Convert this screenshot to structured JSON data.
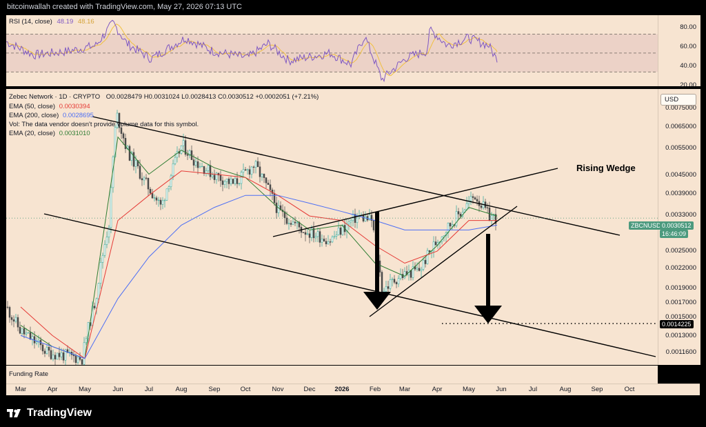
{
  "header": {
    "text": "bitcoinwallah created with TradingView.com, May 27, 2026 07:13 UTC"
  },
  "rsi": {
    "legend_label": "RSI (14, close)",
    "value": "48.19",
    "value_ma": "48.16",
    "ticks": [
      "80.00",
      "60.00",
      "40.00",
      "20.00"
    ],
    "colors": {
      "rsi": "#7e57c2",
      "ma": "#f0c040"
    }
  },
  "price": {
    "legend": {
      "symbol_line": "Zebec Network · 1D · CRYPTO",
      "ohlc": "O0.0028479 H0.0031024 L0.0028413 C0.0030512 +0.0002051 (+7.21%)",
      "ema50": "EMA (50, close)",
      "ema50_value": "0.0030394",
      "ema200": "EMA (200, close)",
      "ema200_value": "0.0028695",
      "vol_note": "Vol: The data vendor doesn't provide volume data for this symbol.",
      "ema20": "EMA (20, close)",
      "ema20_value": "0.0031010"
    },
    "currency": "USD",
    "ticks": [
      "0.0075000",
      "0.0065000",
      "0.0055000",
      "0.0045000",
      "0.0039000",
      "0.0033000",
      "0.0025000",
      "0.0022000",
      "0.0019000",
      "0.0017000",
      "0.0015000",
      "0.0013000",
      "0.0011600"
    ],
    "symbol_badge": "ZBCNUSD",
    "last_price": "0.0030512",
    "countdown": "16:46:09",
    "target_price": "0.0014225",
    "annotation": "Rising Wedge",
    "colors": {
      "up": "#26a69a",
      "down": "#4a4a4a",
      "ema20": "#2e7d32",
      "ema50": "#e53935",
      "ema200": "#4c6ef5",
      "badge": "#4c9a7e"
    }
  },
  "funding": {
    "label": "Funding Rate"
  },
  "time_axis": {
    "labels": [
      "Mar",
      "Apr",
      "May",
      "Jun",
      "Jul",
      "Aug",
      "Sep",
      "Oct",
      "Nov",
      "Dec",
      "2026",
      "Feb",
      "Mar",
      "Apr",
      "May",
      "Jun",
      "Jul",
      "Aug",
      "Sep",
      "Oct"
    ]
  },
  "footer": {
    "brand": "TradingView"
  },
  "chart_data": {
    "type": "line",
    "title": "Zebec Network · 1D · CRYPTO",
    "currency": "USD",
    "yscale": "log",
    "ylim": [
      0.00105,
      0.0078
    ],
    "x": [
      "Mar",
      "Apr",
      "May",
      "Jun",
      "Jul",
      "Aug",
      "Sep",
      "Oct",
      "Nov",
      "Dec",
      "2026",
      "Feb",
      "Mar",
      "Apr",
      "May",
      "Jun"
    ],
    "series": [
      {
        "name": "EMA (20, close)",
        "values": [
          0.0014,
          0.0012,
          0.0011,
          0.0055,
          0.0042,
          0.005,
          0.0044,
          0.0041,
          0.0033,
          0.0028,
          0.0029,
          0.0022,
          0.002,
          0.0025,
          0.0033,
          0.0031
        ]
      },
      {
        "name": "EMA (50, close)",
        "values": [
          0.0016,
          0.0013,
          0.0011,
          0.003,
          0.0036,
          0.0043,
          0.0042,
          0.0041,
          0.0036,
          0.0031,
          0.003,
          0.0025,
          0.0022,
          0.0024,
          0.003,
          0.003
        ]
      },
      {
        "name": "EMA (200, close)",
        "values": [
          0.0013,
          0.0012,
          0.0011,
          0.0017,
          0.0023,
          0.0029,
          0.0033,
          0.0036,
          0.0036,
          0.0034,
          0.0032,
          0.003,
          0.0028,
          0.0028,
          0.0028,
          0.0029
        ]
      }
    ],
    "rsi": {
      "ylim": [
        15,
        90
      ],
      "levels": [
        70,
        50,
        30
      ],
      "latest": 48.19,
      "ma_latest": 48.16
    },
    "annotations": [
      "Rising Wedge",
      "0.0014225"
    ]
  }
}
